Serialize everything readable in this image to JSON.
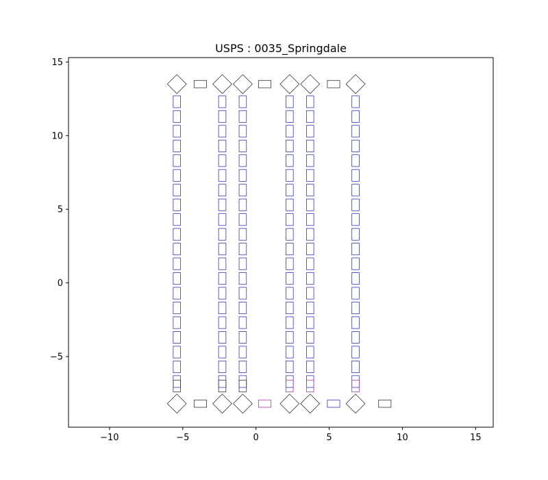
{
  "chart_data": {
    "type": "scatter",
    "title": "USPS : 0035_Springdale",
    "xlabel": "",
    "ylabel": "",
    "xlim": [
      -12.8,
      16.2
    ],
    "ylim": [
      -9.8,
      15.3
    ],
    "x_ticks": [
      -10,
      -5,
      0,
      5,
      10,
      15
    ],
    "x_tick_labels": [
      "−10",
      "−5",
      "0",
      "5",
      "10",
      "15"
    ],
    "y_ticks": [
      -5,
      0,
      5,
      10,
      15
    ],
    "y_tick_labels": [
      "−5",
      "0",
      "5",
      "10",
      "15"
    ],
    "grid": false,
    "colors": {
      "blue": "#3333bb",
      "black": "#333333",
      "purple": "#aa33aa"
    },
    "columns": [
      {
        "x": -5.4,
        "bottom_color": "black"
      },
      {
        "x": -2.3,
        "bottom_color": "black"
      },
      {
        "x": -0.9,
        "bottom_color": "black"
      },
      {
        "x": 2.3,
        "bottom_color": "purple"
      },
      {
        "x": 3.7,
        "bottom_color": "purple"
      },
      {
        "x": 6.8,
        "bottom_color": "purple"
      }
    ],
    "column_rows_y": [
      12.3,
      11.3,
      10.3,
      9.3,
      8.3,
      7.3,
      6.3,
      5.3,
      4.3,
      3.3,
      2.3,
      1.3,
      0.3,
      -0.7,
      -1.7,
      -2.7,
      -3.7,
      -4.7,
      -5.7,
      -6.7
    ],
    "slot_size": {
      "w": 0.5,
      "h": 0.8
    },
    "top_items": [
      {
        "x": -5.4,
        "y": 13.5,
        "shape": "diamond",
        "color": "black"
      },
      {
        "x": -3.8,
        "y": 13.5,
        "shape": "rect",
        "color": "black"
      },
      {
        "x": -2.3,
        "y": 13.5,
        "shape": "diamond",
        "color": "black"
      },
      {
        "x": -0.9,
        "y": 13.5,
        "shape": "diamond",
        "color": "black"
      },
      {
        "x": 0.6,
        "y": 13.5,
        "shape": "rect",
        "color": "black"
      },
      {
        "x": 2.3,
        "y": 13.5,
        "shape": "diamond",
        "color": "black"
      },
      {
        "x": 3.7,
        "y": 13.5,
        "shape": "diamond",
        "color": "black"
      },
      {
        "x": 5.3,
        "y": 13.5,
        "shape": "rect",
        "color": "black"
      },
      {
        "x": 6.8,
        "y": 13.5,
        "shape": "diamond",
        "color": "black"
      }
    ],
    "bottom_items": [
      {
        "x": -5.4,
        "y": -8.2,
        "shape": "diamond",
        "color": "black"
      },
      {
        "x": -3.8,
        "y": -8.2,
        "shape": "rect",
        "color": "black"
      },
      {
        "x": -2.3,
        "y": -8.2,
        "shape": "diamond",
        "color": "black"
      },
      {
        "x": -0.9,
        "y": -8.2,
        "shape": "diamond",
        "color": "black"
      },
      {
        "x": 0.6,
        "y": -8.2,
        "shape": "rect",
        "color": "purple"
      },
      {
        "x": 2.3,
        "y": -8.2,
        "shape": "diamond",
        "color": "black"
      },
      {
        "x": 3.7,
        "y": -8.2,
        "shape": "diamond",
        "color": "black"
      },
      {
        "x": 5.3,
        "y": -8.2,
        "shape": "rect",
        "color": "blue"
      },
      {
        "x": 6.8,
        "y": -8.2,
        "shape": "diamond",
        "color": "black"
      },
      {
        "x": 8.8,
        "y": -8.2,
        "shape": "rect",
        "color": "black"
      }
    ],
    "horizontal_slot_size": {
      "w": 0.85,
      "h": 0.5
    },
    "diamond_size": 0.65
  }
}
